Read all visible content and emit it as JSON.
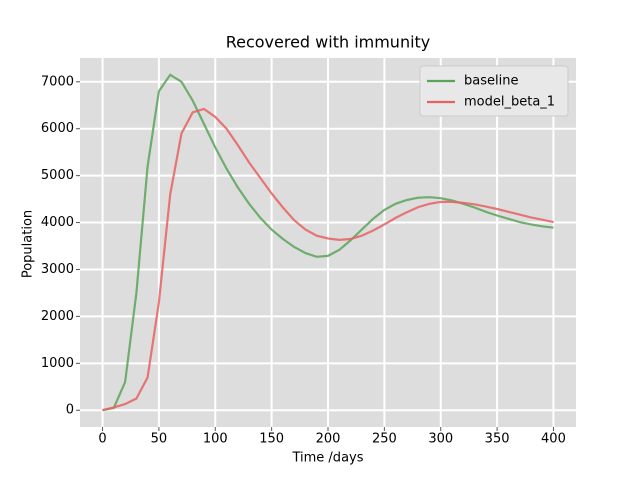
{
  "chart_data": {
    "type": "line",
    "title": "Recovered with immunity",
    "xlabel": "Time /days",
    "ylabel": "Population",
    "x": [
      0,
      10,
      20,
      30,
      40,
      50,
      60,
      70,
      80,
      90,
      100,
      110,
      120,
      130,
      140,
      150,
      160,
      170,
      180,
      190,
      200,
      210,
      220,
      230,
      240,
      250,
      260,
      270,
      280,
      290,
      300,
      310,
      320,
      330,
      340,
      350,
      360,
      370,
      380,
      390,
      400
    ],
    "series": [
      {
        "name": "baseline",
        "color": "#5aa55a",
        "values": [
          0,
          50,
          600,
          2500,
          5200,
          6800,
          7150,
          7000,
          6600,
          6100,
          5600,
          5150,
          4750,
          4400,
          4100,
          3850,
          3650,
          3480,
          3350,
          3270,
          3290,
          3420,
          3620,
          3850,
          4080,
          4270,
          4400,
          4480,
          4530,
          4540,
          4520,
          4470,
          4400,
          4320,
          4230,
          4150,
          4080,
          4010,
          3960,
          3920,
          3890
        ]
      },
      {
        "name": "model_beta_1",
        "color": "#e86262",
        "values": [
          0,
          60,
          130,
          250,
          700,
          2300,
          4600,
          5900,
          6350,
          6420,
          6250,
          6000,
          5650,
          5280,
          4950,
          4620,
          4320,
          4050,
          3850,
          3720,
          3660,
          3630,
          3650,
          3720,
          3830,
          3960,
          4100,
          4220,
          4330,
          4400,
          4440,
          4440,
          4420,
          4390,
          4340,
          4290,
          4230,
          4170,
          4110,
          4060,
          4010
        ]
      }
    ],
    "xlim": [
      -20,
      420
    ],
    "ylim": [
      -357,
      7507
    ],
    "xticks": [
      0,
      50,
      100,
      150,
      200,
      250,
      300,
      350,
      400
    ],
    "yticks": [
      0,
      1000,
      2000,
      3000,
      4000,
      5000,
      6000,
      7000
    ],
    "grid": true,
    "legend": "upper right",
    "background": "#dddddd"
  }
}
